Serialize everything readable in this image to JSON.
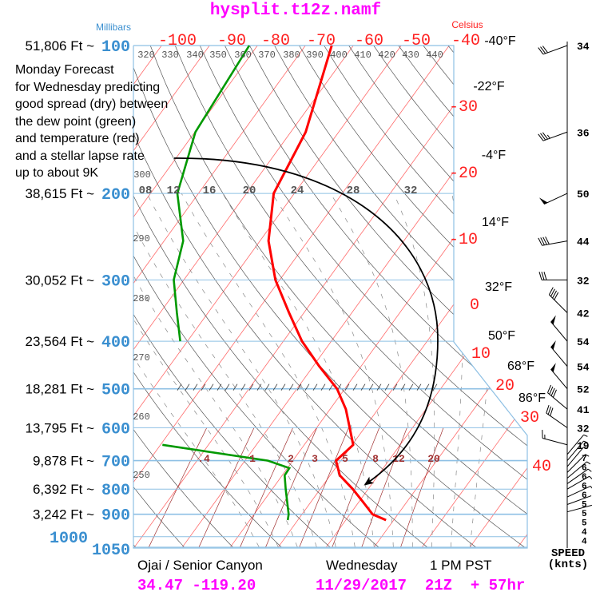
{
  "title": "hysplit.t12z.namf",
  "axis_titles": {
    "pressure": "Millibars",
    "temperature": "Celsius"
  },
  "annotation": {
    "lines": [
      "Monday Forecast",
      "for Wednesday predicting",
      "good spread (dry) between",
      "the dew point (green)",
      "and temperature (red)",
      "and a stellar lapse rate",
      "up to about 9K"
    ]
  },
  "footer": {
    "location": "Ojai / Senior Canyon",
    "day": "Wednesday",
    "time": "1 PM PST",
    "coords": "34.47 -119.20",
    "run": "11/29/2017  21Z  + 57hr"
  },
  "colors": {
    "title": "#ff00ff",
    "temperature": "#ff0000",
    "dewpoint": "#009900",
    "isobar": "#8ec0e4",
    "isotherm": "#ff6a6a",
    "pressure_label": "#3a8fd0",
    "mixing_ratio": "#a03030",
    "adiabat": "#555555"
  },
  "chart_data": {
    "type": "skew-t",
    "title": "hysplit.t12z.namf",
    "pressure_axis": {
      "label": "Millibars",
      "levels": [
        {
          "p": "100",
          "alt": "51,806 Ft ~"
        },
        {
          "p": "200",
          "alt": "38,615 Ft ~"
        },
        {
          "p": "300",
          "alt": "30,052 Ft ~"
        },
        {
          "p": "400",
          "alt": "23,564 Ft ~"
        },
        {
          "p": "500",
          "alt": "18,281 Ft ~"
        },
        {
          "p": "600",
          "alt": "13,795 Ft ~"
        },
        {
          "p": "700",
          "alt": "9,878 Ft ~"
        },
        {
          "p": "800",
          "alt": "6,392 Ft ~"
        },
        {
          "p": "900",
          "alt": "3,242 Ft ~"
        },
        {
          "p": "1000",
          "alt": ""
        },
        {
          "p": "1050",
          "alt": ""
        }
      ]
    },
    "temperature_axis": {
      "label": "Celsius",
      "top_ticks": [
        "-100",
        "-90",
        "-80",
        "-70",
        "-60",
        "-50",
        "-40"
      ],
      "right_ticks": [
        "-30",
        "-20",
        "-10",
        "0",
        "10",
        "20",
        "30",
        "40"
      ],
      "fahrenheit": [
        "-40°F",
        "-22°F",
        "-4°F",
        "14°F",
        "32°F",
        "50°F",
        "68°F",
        "86°F"
      ]
    },
    "dry_adiabat_labels": [
      "320",
      "330",
      "340",
      "350",
      "360",
      "370",
      "380",
      "390",
      "400",
      "410",
      "420",
      "430",
      "440",
      "300",
      "290",
      "280",
      "270",
      "260",
      "250"
    ],
    "moist_adiabat_labels": [
      "08",
      "12",
      "16",
      "20",
      "24",
      "28",
      "32"
    ],
    "mixing_ratio_labels": [
      ".4",
      "1",
      "2",
      "3",
      "5",
      "8",
      "12",
      "20"
    ],
    "temperature": {
      "pressure": [
        100,
        150,
        200,
        250,
        300,
        350,
        400,
        450,
        500,
        550,
        600,
        650,
        700,
        750,
        800,
        850,
        900,
        925
      ],
      "values": [
        -64.5,
        -56.9,
        -54.3,
        -48.2,
        -40.9,
        -33.1,
        -26.1,
        -18.7,
        -11.6,
        -6.7,
        -3.1,
        0.2,
        -1,
        2,
        6.8,
        10.9,
        14.7,
        18.4
      ]
    },
    "dewpoint": {
      "pressure": [
        100,
        150,
        200,
        250,
        300,
        350,
        400,
        650,
        700,
        725,
        750,
        800,
        900,
        925
      ],
      "values": [
        -81.7,
        -79.9,
        -74.4,
        -66,
        -62.1,
        -56.5,
        -51.5,
        -39.6,
        -15.2,
        -9.6,
        -9.5,
        -7.2,
        -2.8,
        -2.1
      ],
      "gap_after_pressure": 400
    },
    "wind": {
      "label": "SPEED (knts)",
      "speeds": [
        "34",
        "36",
        "50",
        "44",
        "32",
        "42",
        "54",
        "54",
        "52",
        "41",
        "32",
        "19",
        "7",
        "6",
        "6",
        "6",
        "6",
        "5",
        "5",
        "5",
        "4",
        "4"
      ],
      "pressure": [
        100,
        150,
        200,
        250,
        300,
        350,
        400,
        450,
        500,
        550,
        600,
        650,
        680,
        700,
        720,
        740,
        760,
        780,
        800,
        830,
        860,
        890
      ],
      "direction_deg": [
        250,
        250,
        245,
        260,
        270,
        315,
        320,
        320,
        320,
        310,
        305,
        285,
        40,
        40,
        40,
        45,
        50,
        55,
        60,
        65,
        70,
        75
      ]
    }
  }
}
